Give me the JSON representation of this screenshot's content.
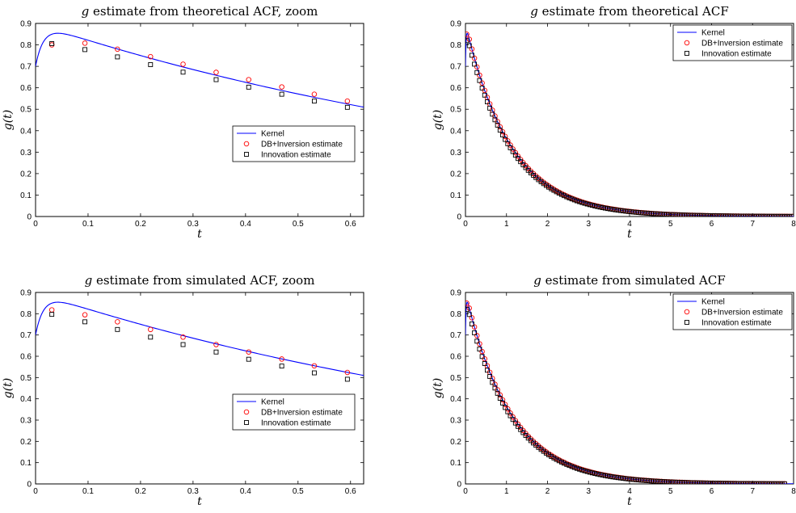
{
  "chart_data": [
    {
      "type": "line",
      "title": "g estimate from theoretical ACF, zoom",
      "title_parts": [
        "g",
        " estimate from theoretical ACF, zoom"
      ],
      "xlabel": "t",
      "ylabel": "g(t)",
      "xlim": [
        0,
        0.625
      ],
      "ylim": [
        0,
        0.9
      ],
      "xticks": [
        0,
        0.1,
        0.2,
        0.3,
        0.4,
        0.5,
        0.6
      ],
      "yticks": [
        0,
        0.1,
        0.2,
        0.3,
        0.4,
        0.5,
        0.6,
        0.7,
        0.8,
        0.9
      ],
      "grid": false,
      "legend_position": "right-middle",
      "kernel": "g(t) = 0.9*exp(-t/1.1) - 0.2*exp(-t/0.015)",
      "series": [
        {
          "name": "Kernel",
          "style": "line",
          "color": "#0000ff",
          "n_points": 200
        },
        {
          "name": "DB+Inversion estimate",
          "style": "circle",
          "color": "#ff0000",
          "x": [
            0.031,
            0.094,
            0.156,
            0.219,
            0.281,
            0.344,
            0.406,
            0.469,
            0.531,
            0.594
          ],
          "y": [
            0.8,
            0.808,
            0.78,
            0.745,
            0.71,
            0.672,
            0.638,
            0.604,
            0.57,
            0.538
          ]
        },
        {
          "name": "Innovation estimate",
          "style": "square",
          "color": "#000000",
          "x": [
            0.031,
            0.094,
            0.156,
            0.219,
            0.281,
            0.344,
            0.406,
            0.469,
            0.531,
            0.594
          ],
          "y": [
            0.806,
            0.778,
            0.744,
            0.708,
            0.673,
            0.638,
            0.603,
            0.57,
            0.538,
            0.509
          ]
        }
      ]
    },
    {
      "type": "line",
      "title": "g estimate from theoretical ACF",
      "title_parts": [
        "g",
        " estimate from theoretical ACF"
      ],
      "xlabel": "t",
      "ylabel": "g(t)",
      "xlim": [
        0,
        8
      ],
      "ylim": [
        0,
        0.9
      ],
      "xticks": [
        0,
        1,
        2,
        3,
        4,
        5,
        6,
        7,
        8
      ],
      "yticks": [
        0,
        0.1,
        0.2,
        0.3,
        0.4,
        0.5,
        0.6,
        0.7,
        0.8,
        0.9
      ],
      "grid": false,
      "legend_position": "top-right",
      "kernel": "g(t) = 0.9*exp(-t/1.1) - 0.2*exp(-t/0.015)",
      "series": [
        {
          "name": "Kernel",
          "style": "line",
          "color": "#0000ff",
          "n_points": 300
        },
        {
          "name": "DB+Inversion estimate",
          "style": "circle",
          "color": "#ff0000",
          "x_start": 0.031,
          "x_step": 0.0625,
          "x_end": 8.0,
          "offset": 0.0
        },
        {
          "name": "Innovation estimate",
          "style": "square",
          "color": "#000000",
          "x_start": 0.031,
          "x_step": 0.0625,
          "x_end": 8.0,
          "offset": -0.03
        }
      ]
    },
    {
      "type": "line",
      "title": "g estimate from simulated ACF, zoom",
      "title_parts": [
        "g",
        " estimate from simulated ACF, zoom"
      ],
      "xlabel": "t",
      "ylabel": "g(t)",
      "xlim": [
        0,
        0.625
      ],
      "ylim": [
        0,
        0.9
      ],
      "xticks": [
        0,
        0.1,
        0.2,
        0.3,
        0.4,
        0.5,
        0.6
      ],
      "yticks": [
        0,
        0.1,
        0.2,
        0.3,
        0.4,
        0.5,
        0.6,
        0.7,
        0.8,
        0.9
      ],
      "grid": false,
      "legend_position": "right-middle",
      "kernel": "g(t) = 0.9*exp(-t/1.1) - 0.2*exp(-t/0.015)",
      "series": [
        {
          "name": "Kernel",
          "style": "line",
          "color": "#0000ff",
          "n_points": 200
        },
        {
          "name": "DB+Inversion estimate",
          "style": "circle",
          "color": "#ff0000",
          "x": [
            0.031,
            0.094,
            0.156,
            0.219,
            0.281,
            0.344,
            0.406,
            0.469,
            0.531,
            0.594
          ],
          "y": [
            0.818,
            0.795,
            0.762,
            0.726,
            0.69,
            0.655,
            0.62,
            0.587,
            0.555,
            0.524
          ]
        },
        {
          "name": "Innovation estimate",
          "style": "square",
          "color": "#000000",
          "x": [
            0.031,
            0.094,
            0.156,
            0.219,
            0.281,
            0.344,
            0.406,
            0.469,
            0.531,
            0.594
          ],
          "y": [
            0.797,
            0.762,
            0.726,
            0.69,
            0.655,
            0.62,
            0.586,
            0.554,
            0.522,
            0.492
          ]
        }
      ]
    },
    {
      "type": "line",
      "title": "g estimate from simulated ACF",
      "title_parts": [
        "g",
        " estimate from simulated ACF"
      ],
      "xlabel": "t",
      "ylabel": "g(t)",
      "xlim": [
        0,
        8
      ],
      "ylim": [
        0,
        0.9
      ],
      "xticks": [
        0,
        1,
        2,
        3,
        4,
        5,
        6,
        7,
        8
      ],
      "yticks": [
        0,
        0.1,
        0.2,
        0.3,
        0.4,
        0.5,
        0.6,
        0.7,
        0.8,
        0.9
      ],
      "grid": false,
      "legend_position": "top-right",
      "kernel": "g(t) = 0.9*exp(-t/1.1) - 0.2*exp(-t/0.015)",
      "series": [
        {
          "name": "Kernel",
          "style": "line",
          "color": "#0000ff",
          "n_points": 300
        },
        {
          "name": "DB+Inversion estimate",
          "style": "circle",
          "color": "#ff0000",
          "x_start": 0.031,
          "x_step": 0.0625,
          "x_end": 7.8,
          "offset": 0.0
        },
        {
          "name": "Innovation estimate",
          "style": "square",
          "color": "#000000",
          "x_start": 0.031,
          "x_step": 0.0625,
          "x_end": 7.8,
          "offset": -0.03
        }
      ]
    }
  ]
}
